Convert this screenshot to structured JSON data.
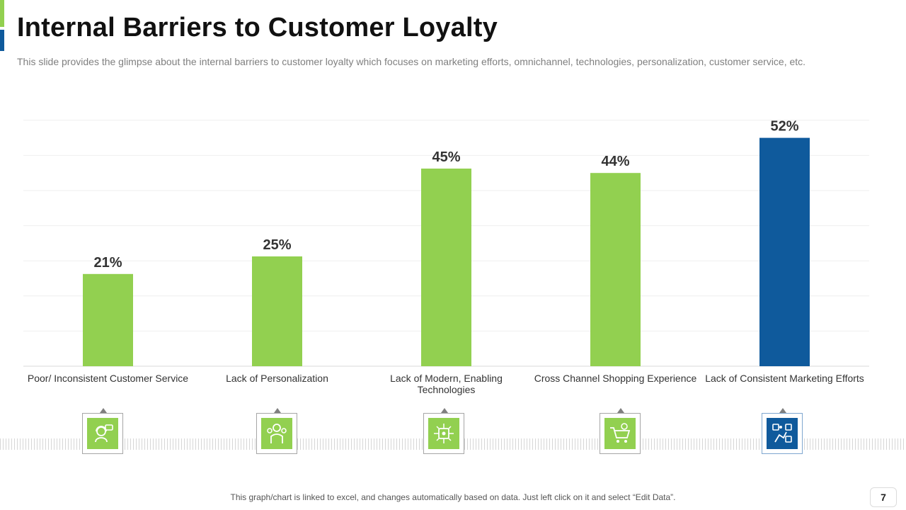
{
  "title": "Internal Barriers to Customer Loyalty",
  "subtitle": "This slide provides the glimpse about the internal barriers to customer loyalty which focuses on marketing efforts, omnichannel, technologies, personalization, customer service, etc.",
  "footer_note": "This graph/chart is linked to excel,  and changes automatically based on data. Just left click on it and select “Edit Data”.",
  "page_number": "7",
  "colors": {
    "green": "#92d050",
    "blue": "#0f5a9c",
    "grid": "#efefef",
    "axis": "#d9d9d9"
  },
  "icons": [
    {
      "name": "customer-support-icon",
      "color": "green"
    },
    {
      "name": "person-gears-icon",
      "color": "green"
    },
    {
      "name": "circuit-chip-icon",
      "color": "green"
    },
    {
      "name": "shopping-cart-icon",
      "color": "green"
    },
    {
      "name": "marketing-board-icon",
      "color": "blue"
    }
  ],
  "chart_data": {
    "type": "bar",
    "title": "",
    "xlabel": "",
    "ylabel": "",
    "categories": [
      "Poor/ Inconsistent Customer Service",
      "Lack of Personalization",
      "Lack of Modern, Enabling Technologies",
      "Cross Channel Shopping Experience",
      "Lack of Consistent Marketing Efforts"
    ],
    "values": [
      21,
      25,
      45,
      44,
      52
    ],
    "data_labels": [
      "21%",
      "25%",
      "45%",
      "44%",
      "52%"
    ],
    "bar_colors": [
      "green",
      "green",
      "green",
      "green",
      "blue"
    ],
    "ylim": [
      0,
      56
    ],
    "grid": true,
    "legend": "none"
  }
}
